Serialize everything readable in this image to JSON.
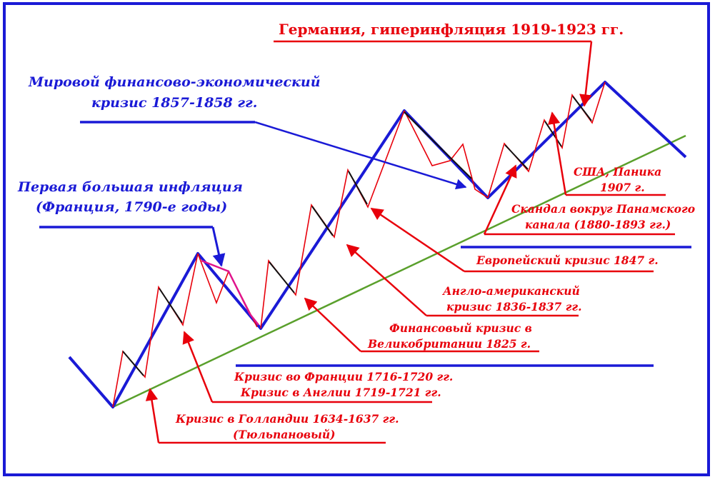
{
  "colors": {
    "frame": "#1a1ad6",
    "blue_line": "#1a1ad6",
    "red_line": "#e8000b",
    "green_trend": "#5aa02c",
    "magenta": "#e0148c",
    "black": "#111111"
  },
  "title": "Германия, гиперинфляция 1919-1923 гг.",
  "annotations": {
    "world_crisis_line1": "Мировой финансово-экономический",
    "world_crisis_line2": "кризис 1857-1858 гг.",
    "first_inflation_line1": "Первая большая инфляция",
    "first_inflation_line2": "(Франция, 1790-е годы)",
    "usa_panic_line1": "США, Паника",
    "usa_panic_line2": "1907 г.",
    "panama_line1": "Скандал вокруг Панамского",
    "panama_line2": "канала (1880-1893 гг.)",
    "european_1847": "Европейский кризис 1847 г.",
    "anglo_american_line1": "Англо-американский",
    "anglo_american_line2": "кризис 1836-1837 гг.",
    "britain_1825_line1": "Финансовый кризис в",
    "britain_1825_line2": "Великобритании 1825 г.",
    "france_1716": "Кризис во Франции 1716-1720 гг.",
    "england_1719": "Кризис в Англии 1719-1721 гг.",
    "holland_line1": "Кризис в Голландии 1634-1637 гг.",
    "holland_line2": "(Тюльпановый)"
  }
}
